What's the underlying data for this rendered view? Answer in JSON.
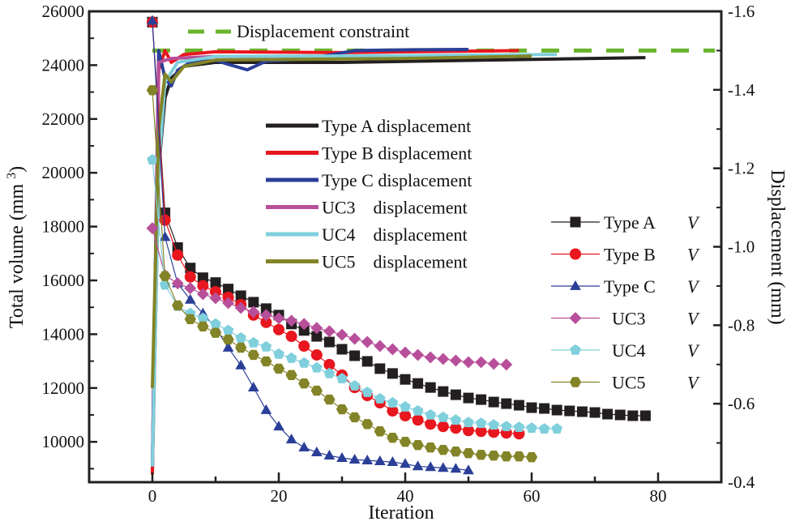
{
  "chart_data": {
    "type": "line",
    "xlabel": "Iteration",
    "ylabel_left": "Total volume (mm",
    "ylabel_left_sup": "3",
    "ylabel_left_close": ")",
    "ylabel_right": "Displacement (mm)",
    "xlim": [
      -10,
      90
    ],
    "ylim_left": [
      8500,
      26000
    ],
    "ylim_right": [
      -0.4,
      -1.6
    ],
    "x_ticks": [
      0,
      20,
      40,
      60,
      80
    ],
    "y_left_ticks": [
      10000,
      12000,
      14000,
      16000,
      18000,
      20000,
      22000,
      24000,
      26000
    ],
    "y_right_ticks": [
      "-0.4",
      "-0.6",
      "-0.8",
      "-1.0",
      "-1.2",
      "-1.4",
      "-1.6"
    ],
    "grid": false,
    "constraint": {
      "name": "Displacement constraint",
      "value": -1.5,
      "color": "#6ab42c"
    },
    "volume_series": [
      {
        "name": "Type A",
        "var": "V",
        "color": "#231f20",
        "marker": "square",
        "x": [
          0,
          2,
          4,
          6,
          8,
          10,
          12,
          14,
          16,
          18,
          20,
          22,
          24,
          26,
          28,
          30,
          32,
          34,
          36,
          38,
          40,
          42,
          44,
          46,
          48,
          50,
          52,
          54,
          56,
          58,
          60,
          62,
          64,
          66,
          68,
          70,
          72,
          74,
          76,
          78
        ],
        "y": [
          25600,
          18510,
          17220,
          16460,
          16100,
          15920,
          15680,
          15430,
          15190,
          14950,
          14710,
          14380,
          14140,
          13920,
          13710,
          13440,
          13200,
          12990,
          12720,
          12540,
          12320,
          12170,
          12020,
          11870,
          11750,
          11630,
          11570,
          11480,
          11420,
          11360,
          11270,
          11240,
          11180,
          11150,
          11120,
          11090,
          11030,
          11000,
          10970,
          10970
        ]
      },
      {
        "name": "Type B",
        "var": "V",
        "color": "#e8161e",
        "marker": "circle",
        "x": [
          0,
          2,
          4,
          6,
          8,
          10,
          12,
          14,
          16,
          18,
          20,
          22,
          24,
          26,
          28,
          30,
          32,
          34,
          36,
          38,
          40,
          42,
          44,
          46,
          48,
          50,
          52,
          54,
          56,
          58
        ],
        "y": [
          25600,
          18240,
          16940,
          16130,
          15800,
          15580,
          15370,
          15100,
          14710,
          14440,
          14170,
          13920,
          13560,
          13230,
          12870,
          12480,
          12020,
          11720,
          11450,
          11150,
          10970,
          10810,
          10660,
          10570,
          10510,
          10420,
          10390,
          10360,
          10330,
          10300
        ]
      },
      {
        "name": "Type C",
        "var": "V",
        "color": "#2b3f98",
        "marker": "triangle",
        "x": [
          0,
          2,
          4,
          6,
          8,
          10,
          12,
          14,
          16,
          18,
          20,
          22,
          24,
          26,
          28,
          30,
          32,
          34,
          36,
          38,
          40,
          42,
          44,
          46,
          48,
          50
        ],
        "y": [
          25650,
          17610,
          15890,
          15280,
          14770,
          14230,
          13500,
          12840,
          12020,
          11180,
          10570,
          10090,
          9790,
          9610,
          9490,
          9400,
          9340,
          9310,
          9280,
          9250,
          9180,
          9090,
          9060,
          9030,
          9000,
          8940
        ]
      },
      {
        "name": "UC3",
        "var": "V",
        "color": "#b84f9a",
        "marker": "diamond",
        "x": [
          0,
          2,
          4,
          6,
          8,
          10,
          12,
          14,
          16,
          18,
          20,
          22,
          24,
          26,
          28,
          30,
          32,
          34,
          36,
          38,
          40,
          42,
          44,
          46,
          48,
          50,
          52,
          54,
          56
        ],
        "y": [
          17940,
          16190,
          15890,
          15710,
          15490,
          15340,
          15160,
          14980,
          14830,
          14710,
          14590,
          14500,
          14380,
          14230,
          14110,
          13980,
          13830,
          13710,
          13560,
          13440,
          13320,
          13230,
          13140,
          13080,
          13020,
          12960,
          12960,
          12900,
          12870
        ]
      },
      {
        "name": "UC4",
        "var": "V",
        "color": "#7fcfdc",
        "marker": "pentagon",
        "x": [
          0,
          2,
          4,
          6,
          8,
          10,
          12,
          14,
          16,
          18,
          20,
          22,
          24,
          26,
          28,
          30,
          32,
          34,
          36,
          38,
          40,
          42,
          44,
          46,
          48,
          50,
          52,
          54,
          56,
          58,
          60,
          62,
          64
        ],
        "y": [
          20480,
          15830,
          15040,
          14770,
          14590,
          14380,
          14140,
          13860,
          13680,
          13530,
          13260,
          13110,
          12930,
          12750,
          12540,
          12350,
          12080,
          11840,
          11600,
          11450,
          11300,
          11150,
          11000,
          10910,
          10810,
          10720,
          10690,
          10630,
          10570,
          10540,
          10510,
          10480,
          10480
        ]
      },
      {
        "name": "UC5",
        "var": "V",
        "color": "#838427",
        "marker": "hexagon",
        "x": [
          0,
          2,
          4,
          6,
          8,
          10,
          12,
          14,
          16,
          18,
          20,
          22,
          24,
          26,
          28,
          30,
          32,
          34,
          36,
          38,
          40,
          42,
          44,
          46,
          48,
          50,
          52,
          54,
          56,
          58,
          60
        ],
        "y": [
          23070,
          16160,
          15070,
          14560,
          14290,
          14050,
          13800,
          13500,
          13230,
          12990,
          12720,
          12480,
          12170,
          11900,
          11570,
          11210,
          10910,
          10660,
          10390,
          10150,
          10000,
          9880,
          9790,
          9700,
          9640,
          9580,
          9520,
          9490,
          9460,
          9460,
          9430
        ]
      }
    ],
    "displacement_series": [
      {
        "name": "Type A displacement",
        "color": "#231f20",
        "x": [
          0,
          1,
          2,
          3,
          5,
          10,
          30,
          50,
          78
        ],
        "y": [
          -0.43,
          -1.2,
          -1.38,
          -1.43,
          -1.46,
          -1.47,
          -1.47,
          -1.475,
          -1.482
        ]
      },
      {
        "name": "Type B displacement",
        "color": "#e8161e",
        "x": [
          0,
          1,
          2,
          3,
          5,
          10,
          30,
          58
        ],
        "y": [
          -0.42,
          -1.45,
          -1.5,
          -1.47,
          -1.49,
          -1.497,
          -1.495,
          -1.5
        ]
      },
      {
        "name": "Type C displacement",
        "color": "#2b3f98",
        "x": [
          0,
          1,
          2,
          3,
          4,
          6,
          10,
          12,
          15,
          18,
          25,
          32,
          40,
          50
        ],
        "y": [
          -0.45,
          -1.5,
          -1.43,
          -1.41,
          -1.45,
          -1.47,
          -1.475,
          -1.465,
          -1.451,
          -1.473,
          -1.48,
          -1.5,
          -1.502,
          -1.503
        ]
      },
      {
        "name": "UC3    displacement",
        "color": "#b84f9a",
        "x": [
          0,
          1,
          3,
          10,
          30,
          56
        ],
        "y": [
          -0.44,
          -1.47,
          -1.48,
          -1.485,
          -1.482,
          -1.485
        ]
      },
      {
        "name": "UC4    displacement",
        "color": "#7fcfdc",
        "x": [
          0,
          1,
          2,
          4,
          10,
          40,
          64
        ],
        "y": [
          -0.44,
          -1.2,
          -1.42,
          -1.47,
          -1.485,
          -1.487,
          -1.49
        ]
      },
      {
        "name": "UC5    displacement",
        "color": "#838427",
        "x": [
          0,
          1,
          2,
          3,
          5,
          10,
          40,
          60
        ],
        "y": [
          -0.64,
          -1.3,
          -1.44,
          -1.42,
          -1.46,
          -1.476,
          -1.48,
          -1.486
        ]
      }
    ],
    "legend_placement": [
      "top-center",
      "center-right"
    ]
  }
}
